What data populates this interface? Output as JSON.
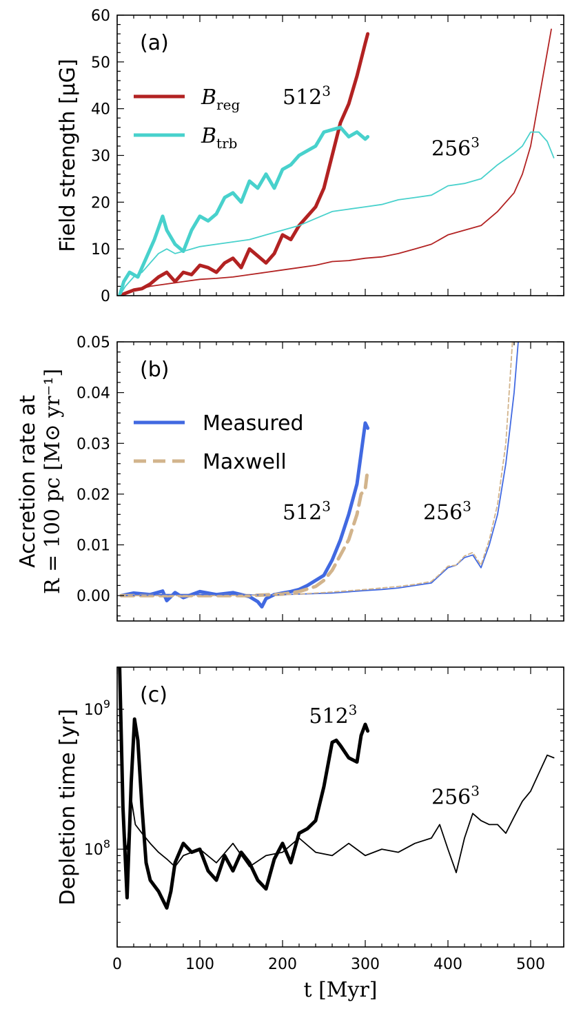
{
  "colors": {
    "breg": "#b22222",
    "btrb": "#48d1cc",
    "measured": "#4169e1",
    "maxwell": "#d2b48c",
    "depletion": "#000000"
  },
  "chart_data": [
    {
      "id": "a",
      "type": "line",
      "panel_label": "(a)",
      "ylabel": "Field strength [μG]",
      "xlim": [
        0,
        540
      ],
      "ylim": [
        0,
        60
      ],
      "yticks": [
        0,
        10,
        20,
        30,
        40,
        50,
        60
      ],
      "ytick_labels": [
        "0",
        "10",
        "20",
        "30",
        "40",
        "50",
        "60"
      ],
      "legend": {
        "position": "upper-left",
        "entries": [
          {
            "base": "B",
            "sub": "reg",
            "series_key": "breg"
          },
          {
            "base": "B",
            "sub": "trb",
            "series_key": "btrb"
          }
        ]
      },
      "annotations": [
        {
          "base": "512",
          "sup": "3",
          "x": 200,
          "y": 41
        },
        {
          "base": "256",
          "sup": "3",
          "x": 380,
          "y": 30
        }
      ],
      "series": [
        {
          "name": "B_reg",
          "color_key": "breg",
          "resolution": "512^3",
          "width": 5,
          "x": [
            3,
            10,
            20,
            30,
            40,
            50,
            60,
            70,
            80,
            90,
            100,
            110,
            120,
            130,
            140,
            150,
            160,
            170,
            180,
            190,
            200,
            210,
            220,
            230,
            240,
            250,
            260,
            270,
            280,
            290,
            300,
            303
          ],
          "y": [
            0,
            0.5,
            1.2,
            1.5,
            2.5,
            4,
            5,
            3,
            5,
            4.5,
            6.5,
            6,
            5,
            7,
            8,
            6,
            10,
            8.5,
            7,
            9,
            13,
            12,
            15,
            17,
            19,
            23,
            30,
            37,
            41,
            47,
            54,
            56
          ]
        },
        {
          "name": "B_trb",
          "color_key": "btrb",
          "resolution": "512^3",
          "width": 5,
          "x": [
            3,
            8,
            15,
            25,
            35,
            45,
            55,
            60,
            70,
            80,
            90,
            100,
            110,
            120,
            130,
            140,
            150,
            160,
            170,
            180,
            190,
            200,
            210,
            220,
            230,
            240,
            250,
            260,
            270,
            280,
            290,
            300,
            303
          ],
          "y": [
            0,
            3,
            5,
            4,
            8,
            12,
            17,
            14,
            11,
            9.5,
            14,
            17,
            16,
            17.5,
            21,
            22,
            20,
            24.5,
            23,
            26,
            23,
            27,
            28,
            30,
            31,
            32,
            35,
            35.5,
            36,
            34,
            35,
            33.5,
            34
          ]
        },
        {
          "name": "B_reg",
          "color_key": "breg",
          "resolution": "256^3",
          "width": 1.8,
          "x": [
            3,
            20,
            40,
            60,
            80,
            100,
            120,
            140,
            160,
            180,
            200,
            220,
            240,
            260,
            280,
            300,
            320,
            340,
            360,
            380,
            400,
            420,
            440,
            460,
            480,
            490,
            500,
            510,
            520,
            525
          ],
          "y": [
            0,
            1,
            2,
            2.5,
            3,
            3.5,
            3.7,
            4,
            4.5,
            5,
            5.5,
            6,
            6.5,
            7.3,
            7.5,
            8,
            8.3,
            9,
            10,
            11,
            13,
            14,
            15,
            18,
            22,
            26,
            32,
            42,
            52,
            57
          ]
        },
        {
          "name": "B_trb",
          "color_key": "btrb",
          "resolution": "256^3",
          "width": 1.8,
          "x": [
            3,
            10,
            20,
            30,
            40,
            50,
            60,
            70,
            80,
            90,
            100,
            120,
            140,
            160,
            180,
            200,
            220,
            240,
            260,
            280,
            300,
            320,
            340,
            360,
            380,
            400,
            420,
            440,
            460,
            480,
            490,
            500,
            510,
            520,
            528
          ],
          "y": [
            0,
            2,
            4,
            5,
            7,
            9,
            10,
            9,
            9.5,
            10,
            10.5,
            11,
            11.5,
            12,
            13,
            14,
            15,
            16.5,
            18,
            18.5,
            19,
            19.5,
            20.5,
            21,
            21.5,
            23.5,
            24,
            25,
            28,
            30.5,
            32,
            35,
            35,
            33,
            29.5
          ]
        }
      ]
    },
    {
      "id": "b",
      "type": "line",
      "panel_label": "(b)",
      "ylabel_line1": "Accretion rate at",
      "ylabel_line2": "R = 100 pc [M⊙ yr⁻¹]",
      "xlim": [
        0,
        540
      ],
      "ylim": [
        -0.005,
        0.05
      ],
      "yticks": [
        0.0,
        0.01,
        0.02,
        0.03,
        0.04,
        0.05
      ],
      "ytick_labels": [
        "0.00",
        "0.01",
        "0.02",
        "0.03",
        "0.04",
        "0.05"
      ],
      "legend": {
        "position": "left",
        "entries": [
          {
            "label": "Measured",
            "series_key": "measured",
            "dash": false
          },
          {
            "label": "Maxwell",
            "series_key": "maxwell",
            "dash": true
          }
        ]
      },
      "annotations": [
        {
          "base": "512",
          "sup": "3",
          "x": 200,
          "y": 0.015
        },
        {
          "base": "256",
          "sup": "3",
          "x": 370,
          "y": 0.015
        }
      ],
      "series": [
        {
          "name": "Measured",
          "color_key": "measured",
          "resolution": "512^3",
          "width": 5,
          "dash": false,
          "x": [
            5,
            20,
            40,
            55,
            60,
            70,
            80,
            100,
            120,
            140,
            160,
            170,
            175,
            180,
            190,
            200,
            210,
            220,
            230,
            240,
            250,
            260,
            270,
            280,
            290,
            295,
            300,
            303
          ],
          "y": [
            0,
            0.0005,
            0.0002,
            0.0009,
            -0.001,
            0.0006,
            -0.0004,
            0.0008,
            0.0002,
            0.0006,
            -0.0002,
            -0.0012,
            -0.0022,
            -0.0006,
            0.0002,
            0.0005,
            0.0008,
            0.0012,
            0.002,
            0.003,
            0.004,
            0.007,
            0.011,
            0.016,
            0.022,
            0.028,
            0.034,
            0.033
          ]
        },
        {
          "name": "Maxwell",
          "color_key": "maxwell",
          "resolution": "512^3",
          "width": 5,
          "dash": true,
          "x": [
            5,
            40,
            80,
            120,
            160,
            200,
            220,
            240,
            250,
            260,
            270,
            280,
            290,
            295,
            300,
            303
          ],
          "y": [
            0,
            0,
            0,
            0,
            0,
            0.0003,
            0.0008,
            0.0018,
            0.003,
            0.005,
            0.008,
            0.011,
            0.016,
            0.02,
            0.021,
            0.025
          ]
        },
        {
          "name": "Measured",
          "color_key": "measured",
          "resolution": "256^3",
          "width": 1.8,
          "dash": false,
          "x": [
            5,
            60,
            120,
            180,
            220,
            260,
            300,
            320,
            340,
            360,
            380,
            390,
            400,
            410,
            420,
            430,
            440,
            450,
            460,
            470,
            480,
            485
          ],
          "y": [
            0,
            0.0002,
            0.0002,
            0.0001,
            0.0003,
            0.0005,
            0.001,
            0.0012,
            0.0015,
            0.002,
            0.0025,
            0.004,
            0.0055,
            0.006,
            0.0075,
            0.008,
            0.0055,
            0.01,
            0.016,
            0.026,
            0.04,
            0.05
          ]
        },
        {
          "name": "Maxwell",
          "color_key": "maxwell",
          "resolution": "256^3",
          "width": 1.8,
          "dash": true,
          "x": [
            5,
            60,
            120,
            180,
            220,
            260,
            300,
            320,
            340,
            360,
            380,
            390,
            400,
            410,
            420,
            430,
            440,
            450,
            460,
            470,
            478
          ],
          "y": [
            0,
            0,
            0,
            0.0001,
            0.0003,
            0.0007,
            0.0012,
            0.0015,
            0.0018,
            0.0022,
            0.0028,
            0.0042,
            0.0058,
            0.006,
            0.0078,
            0.0085,
            0.006,
            0.011,
            0.018,
            0.03,
            0.05
          ]
        }
      ]
    },
    {
      "id": "c",
      "type": "line",
      "panel_label": "(c)",
      "ylabel": "Depletion time [yr]",
      "xlabel": "t [Myr]",
      "xlim": [
        0,
        540
      ],
      "xticks": [
        0,
        100,
        200,
        300,
        400,
        500
      ],
      "xtick_labels": [
        "0",
        "100",
        "200",
        "300",
        "400",
        "500"
      ],
      "yscale": "log",
      "ylim": [
        20000000,
        2000000000
      ],
      "yticks": [
        100000000,
        1000000000
      ],
      "ytick_labels": [
        {
          "base": "10",
          "exp": "8"
        },
        {
          "base": "10",
          "exp": "9"
        }
      ],
      "annotations": [
        {
          "base": "512",
          "sup": "3",
          "x": 232,
          "y": 800000000
        },
        {
          "base": "256",
          "sup": "3",
          "x": 380,
          "y": 210000000
        }
      ],
      "series": [
        {
          "name": "Depletion time",
          "color_key": "depletion",
          "resolution": "512^3",
          "width": 5,
          "x": [
            3,
            7,
            12,
            17,
            21,
            25,
            30,
            35,
            40,
            50,
            60,
            65,
            70,
            80,
            90,
            100,
            110,
            120,
            130,
            140,
            150,
            160,
            170,
            180,
            190,
            200,
            210,
            220,
            230,
            240,
            250,
            260,
            265,
            270,
            280,
            290,
            295,
            300,
            303
          ],
          "y": [
            2000000000,
            200000000,
            45000000,
            300000000,
            850000000,
            600000000,
            200000000,
            80000000,
            60000000,
            50000000,
            38000000,
            50000000,
            80000000,
            110000000,
            95000000,
            100000000,
            70000000,
            60000000,
            90000000,
            70000000,
            95000000,
            80000000,
            60000000,
            52000000,
            85000000,
            110000000,
            80000000,
            130000000,
            140000000,
            160000000,
            280000000,
            580000000,
            600000000,
            550000000,
            450000000,
            420000000,
            650000000,
            780000000,
            700000000
          ]
        },
        {
          "name": "Depletion time",
          "color_key": "depletion",
          "resolution": "256^3",
          "width": 1.8,
          "x": [
            3,
            8,
            12,
            17,
            22,
            30,
            40,
            50,
            60,
            70,
            80,
            100,
            120,
            140,
            160,
            180,
            200,
            220,
            240,
            260,
            280,
            300,
            320,
            340,
            360,
            380,
            390,
            400,
            410,
            420,
            430,
            440,
            450,
            460,
            470,
            480,
            490,
            500,
            510,
            520,
            528
          ],
          "y": [
            2000000000,
            120000000,
            100000000,
            230000000,
            150000000,
            130000000,
            110000000,
            95000000,
            85000000,
            75000000,
            90000000,
            100000000,
            80000000,
            110000000,
            75000000,
            90000000,
            95000000,
            120000000,
            95000000,
            90000000,
            110000000,
            90000000,
            100000000,
            95000000,
            110000000,
            120000000,
            150000000,
            100000000,
            68000000,
            120000000,
            180000000,
            160000000,
            150000000,
            150000000,
            130000000,
            170000000,
            220000000,
            260000000,
            350000000,
            470000000,
            450000000
          ]
        }
      ]
    }
  ]
}
